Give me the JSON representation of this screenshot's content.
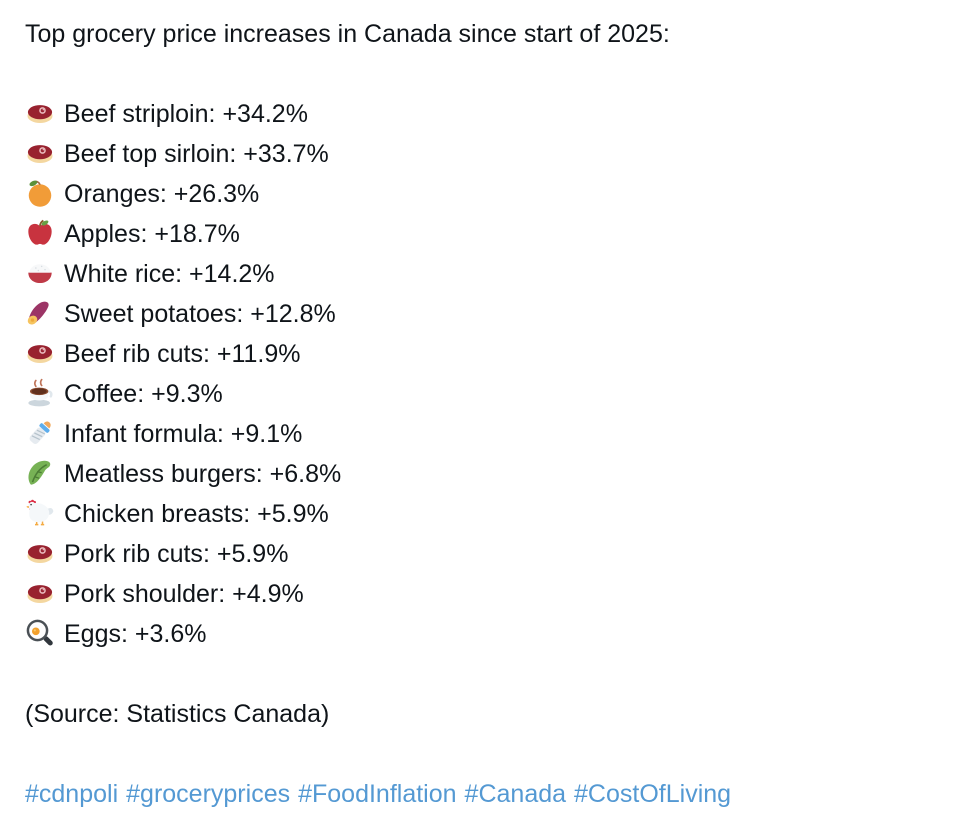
{
  "post": {
    "title": "Top grocery price increases in Canada since start of 2025:",
    "items": [
      {
        "icon": "cut-of-meat-icon",
        "label": "Beef striploin",
        "value": "+34.2%"
      },
      {
        "icon": "cut-of-meat-icon",
        "label": "Beef top sirloin",
        "value": "+33.7%"
      },
      {
        "icon": "tangerine-icon",
        "label": "Oranges",
        "value": "+26.3%"
      },
      {
        "icon": "red-apple-icon",
        "label": "Apples",
        "value": "+18.7%"
      },
      {
        "icon": "cooked-rice-icon",
        "label": "White rice",
        "value": "+14.2%"
      },
      {
        "icon": "sweet-potato-icon",
        "label": "Sweet potatoes",
        "value": "+12.8%"
      },
      {
        "icon": "cut-of-meat-icon",
        "label": "Beef rib cuts",
        "value": "+11.9%"
      },
      {
        "icon": "hot-beverage-icon",
        "label": "Coffee",
        "value": "+9.3%"
      },
      {
        "icon": "baby-bottle-icon",
        "label": "Infant formula",
        "value": "+9.1%"
      },
      {
        "icon": "leafy-green-icon",
        "label": "Meatless burgers",
        "value": "+6.8%"
      },
      {
        "icon": "chicken-icon",
        "label": "Chicken breasts",
        "value": "+5.9%"
      },
      {
        "icon": "cut-of-meat-icon",
        "label": "Pork rib cuts",
        "value": "+5.9%"
      },
      {
        "icon": "cut-of-meat-icon",
        "label": "Pork shoulder",
        "value": "+4.9%"
      },
      {
        "icon": "cooking-egg-icon",
        "label": "Eggs",
        "value": "+3.6%"
      }
    ],
    "source": "(Source: Statistics Canada)",
    "hashtags": [
      "#cdnpoli",
      "#groceryprices",
      "#FoodInflation",
      "#Canada",
      "#CostOfLiving"
    ],
    "colors": {
      "text_color": "#0f1419",
      "link_color": "#5499d3",
      "background": "#ffffff"
    }
  }
}
